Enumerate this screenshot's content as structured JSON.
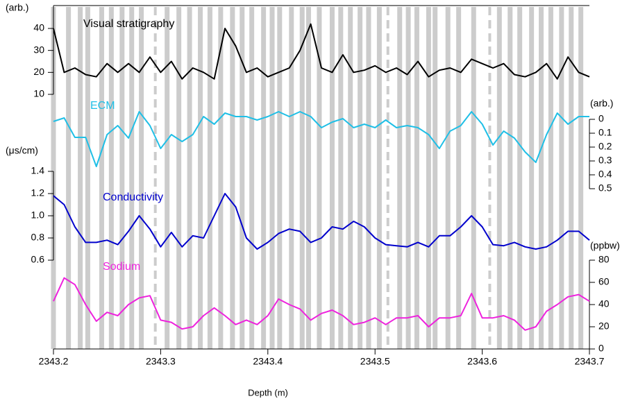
{
  "chart_data": {
    "type": "line",
    "xlabel": "Depth (m)",
    "xlim": [
      2343.2,
      2343.7
    ],
    "xticks": [
      2343.2,
      2343.3,
      2343.4,
      2343.5,
      2343.6,
      2343.7
    ],
    "x": [
      2343.2,
      2343.21,
      2343.22,
      2343.23,
      2343.24,
      2343.25,
      2343.26,
      2343.27,
      2343.28,
      2343.29,
      2343.3,
      2343.31,
      2343.32,
      2343.33,
      2343.34,
      2343.35,
      2343.36,
      2343.37,
      2343.38,
      2343.39,
      2343.4,
      2343.41,
      2343.42,
      2343.43,
      2343.44,
      2343.45,
      2343.46,
      2343.47,
      2343.48,
      2343.49,
      2343.5,
      2343.51,
      2343.52,
      2343.53,
      2343.54,
      2343.55,
      2343.56,
      2343.57,
      2343.58,
      2343.59,
      2343.6,
      2343.61,
      2343.62,
      2343.63,
      2343.64,
      2343.65,
      2343.66,
      2343.67,
      2343.68,
      2343.69,
      2343.7
    ],
    "layer_depths": [
      2343.2,
      2343.214,
      2343.225,
      2343.232,
      2343.245,
      2343.254,
      2343.264,
      2343.273,
      2343.282,
      2343.306,
      2343.317,
      2343.327,
      2343.337,
      2343.346,
      2343.356,
      2343.367,
      2343.376,
      2343.385,
      2343.396,
      2343.404,
      2343.411,
      2343.422,
      2343.432,
      2343.438,
      2343.448,
      2343.46,
      2343.468,
      2343.477,
      2343.486,
      2343.494,
      2343.504,
      2343.523,
      2343.531,
      2343.539,
      2343.55,
      2343.556,
      2343.568,
      2343.578,
      2343.592,
      2343.616,
      2343.626,
      2343.635,
      2343.646,
      2343.655,
      2343.664,
      2343.674,
      2343.683,
      2343.692
    ],
    "layer_color": "#cccccc",
    "dashed_depths": [
      2343.295,
      2343.512,
      2343.607
    ],
    "series": [
      {
        "name": "Visual stratigraphy",
        "color": "#000000",
        "unit": "(arb.)",
        "axis_side": "left",
        "ylim": [
          10,
          40
        ],
        "yticks": [
          10,
          20,
          30,
          40
        ],
        "values": [
          40,
          20,
          22,
          19,
          18,
          24,
          20,
          24,
          20,
          27,
          20,
          25,
          17,
          22,
          20,
          17,
          40,
          32,
          20,
          22,
          18,
          20,
          22,
          30,
          42,
          22,
          20,
          28,
          20,
          21,
          23,
          20,
          22,
          19,
          25,
          18,
          21,
          22,
          20,
          26,
          24,
          22,
          24,
          19,
          18,
          20,
          24,
          17,
          27,
          20,
          18
        ]
      },
      {
        "name": "ECM",
        "color": "#1fbfe6",
        "unit": "(arb.)",
        "axis_side": "right",
        "reversed": true,
        "ylim": [
          0,
          0.5
        ],
        "yticks": [
          0,
          0.1,
          0.2,
          0.3,
          0.4,
          0.5
        ],
        "values": [
          0.015,
          -0.01,
          0.13,
          0.13,
          0.34,
          0.11,
          0.045,
          0.135,
          -0.055,
          0.045,
          0.21,
          0.11,
          0.16,
          0.11,
          -0.02,
          0.035,
          -0.045,
          -0.02,
          -0.02,
          0.005,
          -0.02,
          -0.055,
          -0.02,
          -0.055,
          -0.02,
          0.06,
          0.02,
          -0.005,
          0.06,
          0.035,
          0.06,
          0.005,
          0.06,
          0.045,
          0.06,
          0.11,
          0.21,
          0.085,
          0.045,
          -0.055,
          0.035,
          0.185,
          0.085,
          0.135,
          0.235,
          0.31,
          0.11,
          -0.045,
          0.035,
          -0.02,
          -0.02
        ]
      },
      {
        "name": "Conductivity",
        "color": "#0000cc",
        "unit": "(μs/cm)",
        "axis_side": "left",
        "ylim": [
          0.6,
          1.4
        ],
        "yticks": [
          0.6,
          0.8,
          {
            "value": 1,
            "label": "1.0"
          },
          1.2,
          1.4
        ],
        "values": [
          1.18,
          1.1,
          0.9,
          0.76,
          0.76,
          0.78,
          0.74,
          0.86,
          1.0,
          0.88,
          0.72,
          0.85,
          0.72,
          0.82,
          0.8,
          1.0,
          1.2,
          1.08,
          0.8,
          0.7,
          0.76,
          0.84,
          0.88,
          0.86,
          0.76,
          0.8,
          0.9,
          0.88,
          0.95,
          0.9,
          0.8,
          0.74,
          0.73,
          0.72,
          0.76,
          0.72,
          0.82,
          0.82,
          0.9,
          1.0,
          0.9,
          0.74,
          0.73,
          0.76,
          0.72,
          0.7,
          0.72,
          0.78,
          0.86,
          0.86,
          0.78
        ]
      },
      {
        "name": "Sodium",
        "color": "#ee22dd",
        "unit": "(ppbw)",
        "axis_side": "right",
        "ylim": [
          0,
          80
        ],
        "yticks": [
          0,
          20,
          40,
          60,
          80
        ],
        "values": [
          43,
          64,
          58,
          40,
          25,
          33,
          30,
          40,
          46,
          48,
          26,
          24,
          18,
          20,
          30,
          37,
          30,
          22,
          26,
          22,
          30,
          45,
          40,
          36,
          26,
          32,
          35,
          30,
          22,
          24,
          28,
          22,
          28,
          28,
          30,
          20,
          28,
          28,
          30,
          50,
          28,
          28,
          30,
          26,
          17,
          20,
          34,
          40,
          47,
          49,
          43
        ]
      }
    ]
  }
}
